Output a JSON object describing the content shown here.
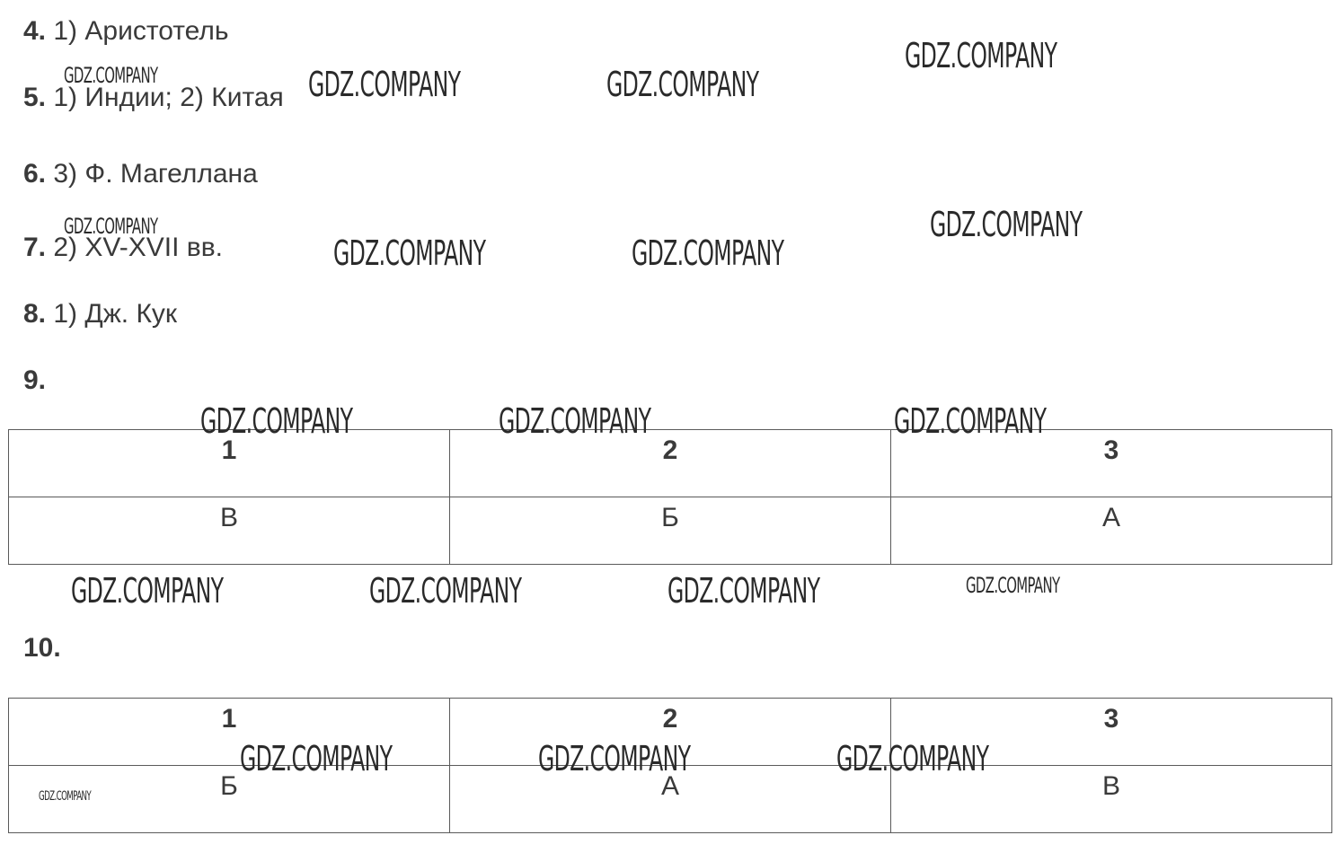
{
  "answers": [
    {
      "num": "4.",
      "text": "1) Аристотель"
    },
    {
      "num": "5.",
      "text": "1) Индии; 2) Китая"
    },
    {
      "num": "6.",
      "text": "3) Ф. Магеллана"
    },
    {
      "num": "7.",
      "text": "2) XV-XVII вв."
    },
    {
      "num": "8.",
      "text": "1) Дж. Кук"
    }
  ],
  "q9": {
    "label": "9.",
    "headers": [
      "1",
      "2",
      "3"
    ],
    "values": [
      "В",
      "Б",
      "А"
    ]
  },
  "q10": {
    "label": "10.",
    "headers": [
      "1",
      "2",
      "3"
    ],
    "values": [
      "Б",
      "А",
      "В"
    ]
  },
  "watermark": {
    "text": "GDZ.COMPANY"
  }
}
